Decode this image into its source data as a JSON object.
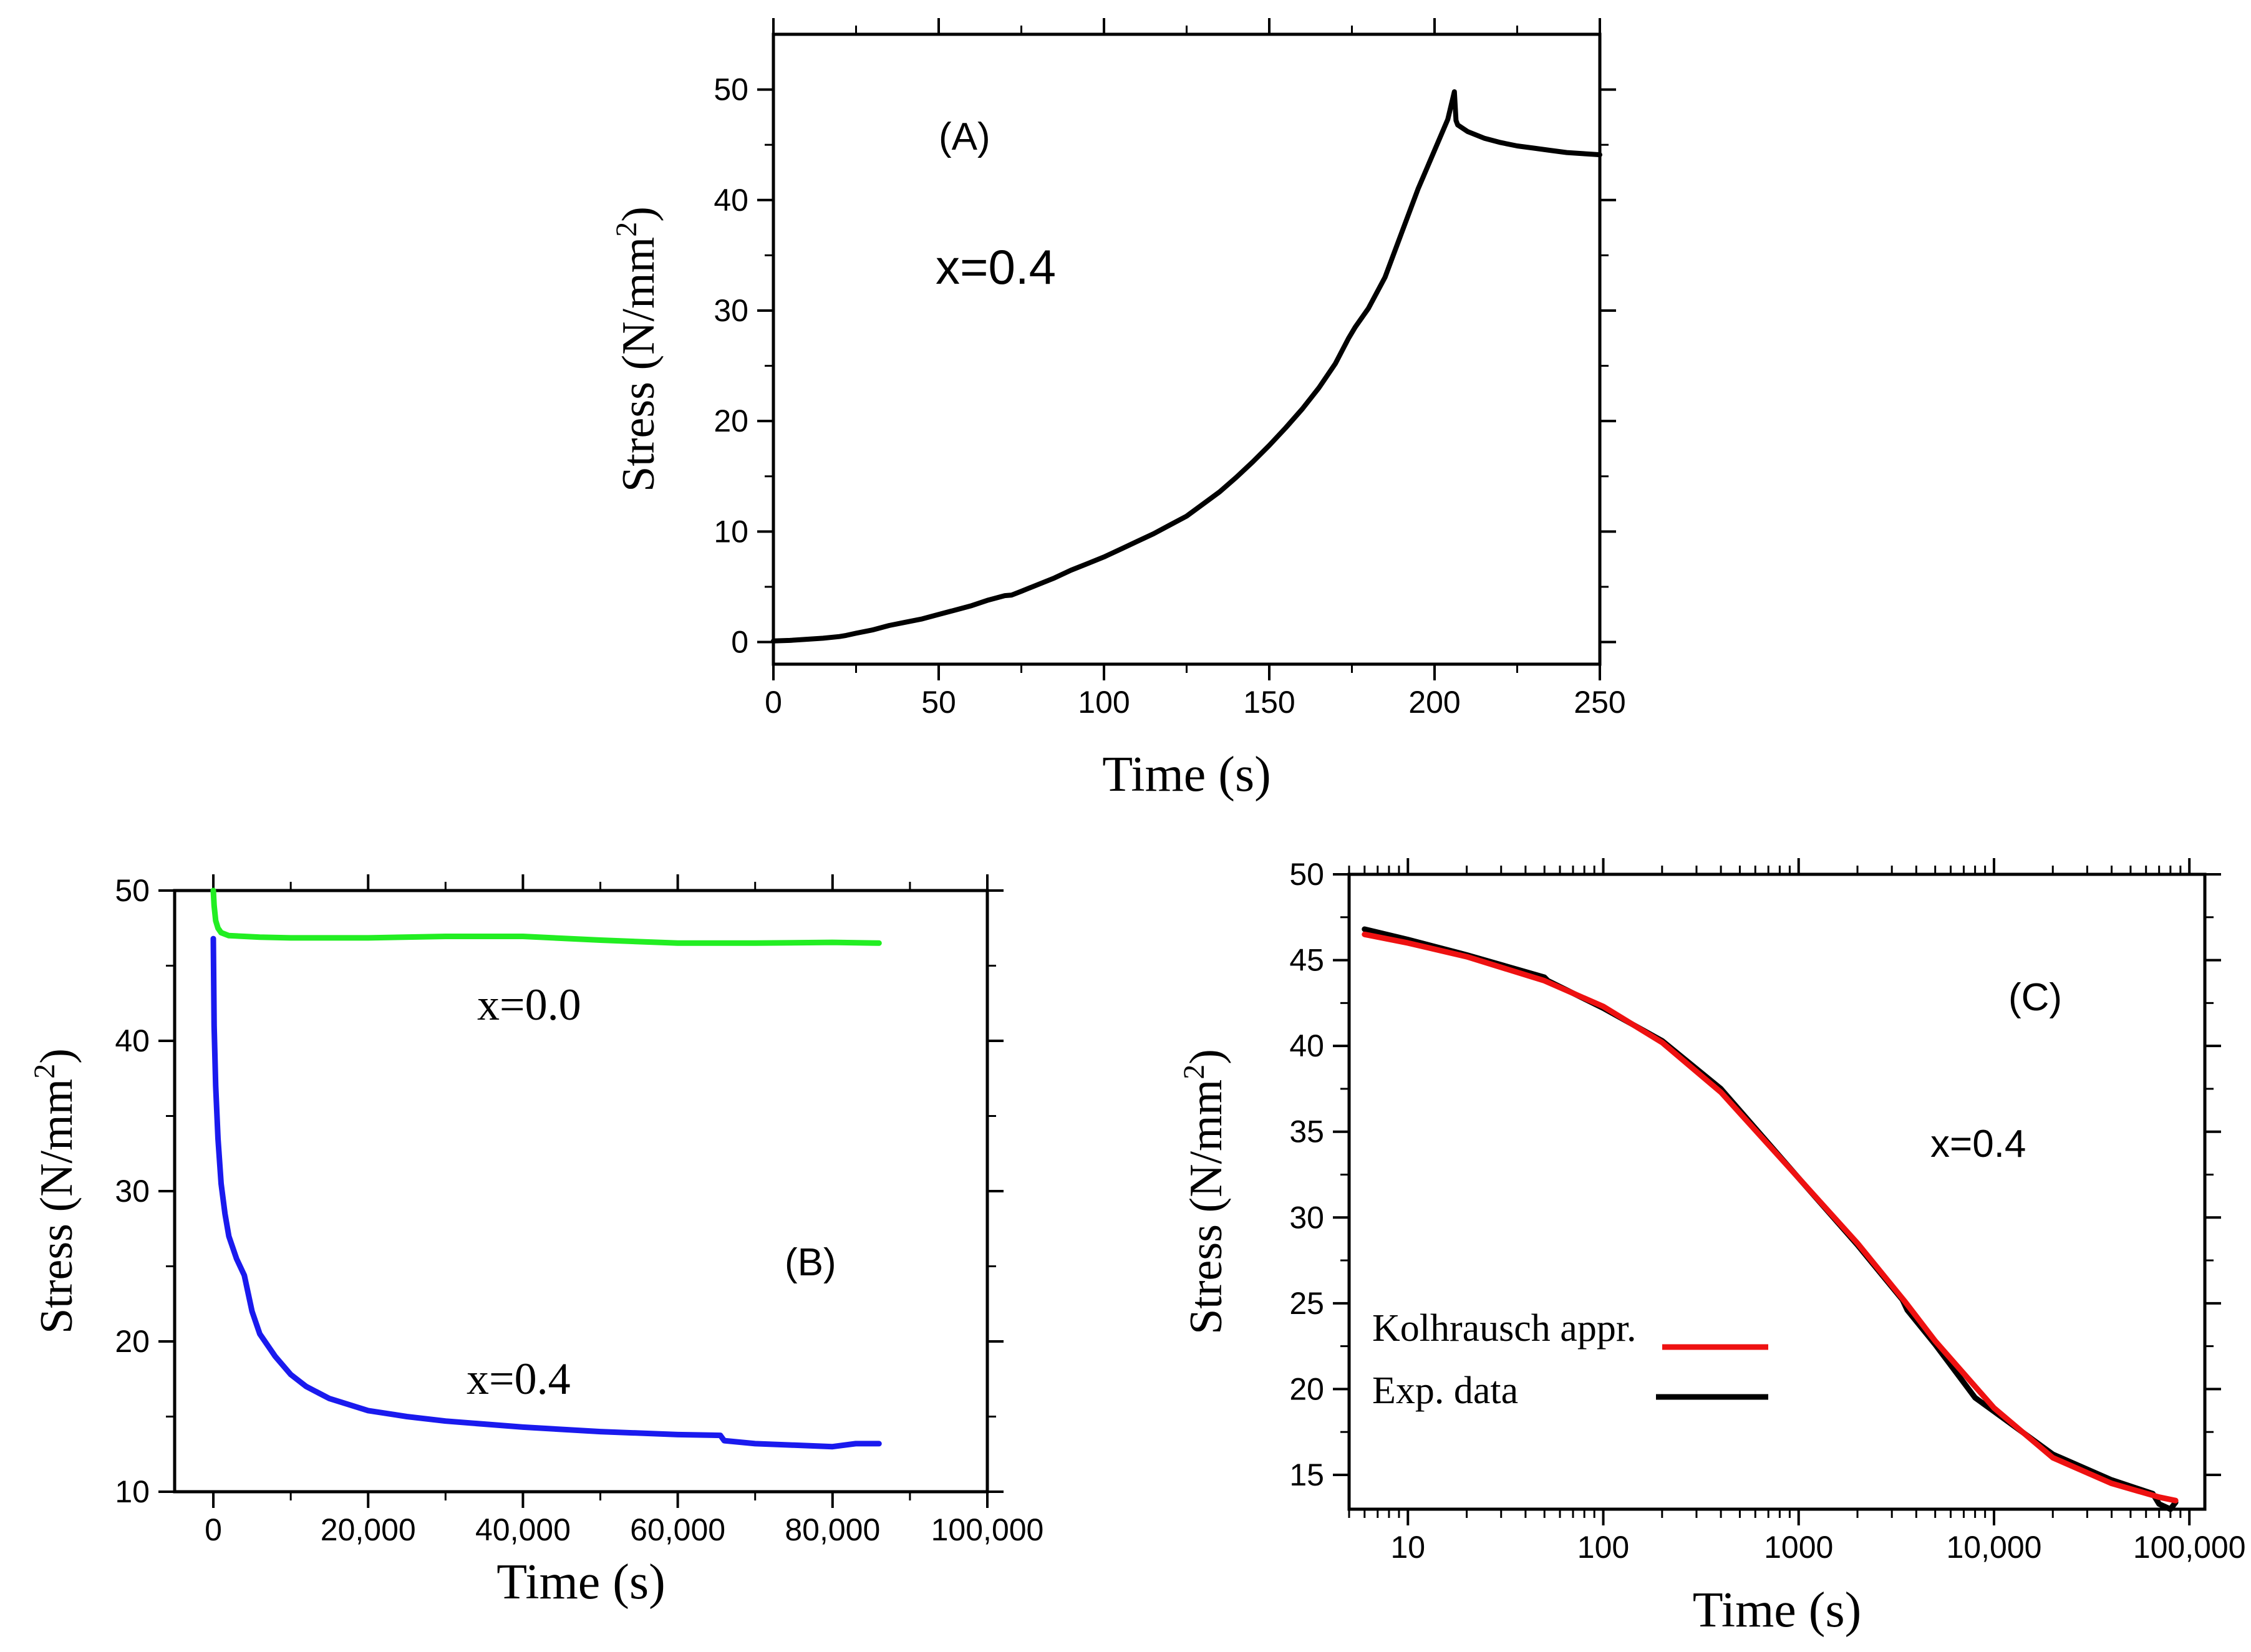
{
  "chart_data": [
    {
      "id": "A",
      "type": "line",
      "panel_label": "(A)",
      "annotation": "x=0.4",
      "xlabel": "Time (s)",
      "ylabel_main": "Stress  (N/mm",
      "ylabel_sup": "2",
      "ylabel_end": ")",
      "xlim": [
        0,
        250
      ],
      "ylim": [
        -2,
        55
      ],
      "xticks": [
        0,
        50,
        100,
        150,
        200,
        250
      ],
      "xtick_labels": [
        "0",
        "50",
        "100",
        "150",
        "200",
        "250"
      ],
      "yticks": [
        0,
        10,
        20,
        30,
        40,
        50
      ],
      "ytick_labels": [
        "0",
        "10",
        "20",
        "30",
        "40",
        "50"
      ],
      "series": [
        {
          "name": "x=0.4",
          "color": "#000000",
          "x": [
            0,
            5,
            10,
            15,
            20,
            22,
            25,
            30,
            35,
            40,
            45,
            50,
            55,
            60,
            65,
            70,
            72,
            75,
            80,
            85,
            90,
            95,
            100,
            105,
            110,
            115,
            120,
            125,
            130,
            135,
            140,
            145,
            150,
            155,
            160,
            165,
            170,
            174,
            176,
            180,
            185,
            190,
            195,
            200,
            204,
            206,
            206.5,
            207,
            210,
            215,
            220,
            225,
            230,
            235,
            240,
            245,
            250
          ],
          "y": [
            0.1,
            0.15,
            0.25,
            0.35,
            0.5,
            0.6,
            0.8,
            1.1,
            1.5,
            1.8,
            2.1,
            2.5,
            2.9,
            3.3,
            3.8,
            4.2,
            4.25,
            4.6,
            5.2,
            5.8,
            6.5,
            7.1,
            7.7,
            8.4,
            9.1,
            9.8,
            10.6,
            11.4,
            12.5,
            13.6,
            14.9,
            16.3,
            17.8,
            19.4,
            21.1,
            23.0,
            25.2,
            27.5,
            28.5,
            30.2,
            33.0,
            37.0,
            41.0,
            44.5,
            47.3,
            49.8,
            47.2,
            46.8,
            46.2,
            45.6,
            45.2,
            44.9,
            44.7,
            44.5,
            44.3,
            44.2,
            44.1
          ]
        }
      ]
    },
    {
      "id": "B",
      "type": "line",
      "panel_label": "(B)",
      "xlabel": "Time (s)",
      "ylabel_main": "Stress  (N/mm",
      "ylabel_sup": "2",
      "ylabel_end": ")",
      "xlim": [
        -5000,
        100000
      ],
      "ylim": [
        10,
        50
      ],
      "xticks": [
        0,
        20000,
        40000,
        60000,
        80000,
        100000
      ],
      "xtick_labels": [
        "0",
        "20,000",
        "40,000",
        "60,000",
        "80,000",
        "100,000"
      ],
      "yticks": [
        10,
        20,
        30,
        40,
        50
      ],
      "ytick_labels": [
        "10",
        "20",
        "30",
        "40",
        "50"
      ],
      "series": [
        {
          "name": "x=0.0",
          "color": "#22ee22",
          "x": [
            0,
            100,
            300,
            600,
            1000,
            2000,
            4000,
            6000,
            10000,
            20000,
            30000,
            40000,
            50000,
            60000,
            70000,
            80000,
            86000
          ],
          "y": [
            50,
            49.0,
            48.0,
            47.5,
            47.2,
            47.0,
            46.95,
            46.9,
            46.85,
            46.85,
            46.95,
            46.95,
            46.7,
            46.5,
            46.5,
            46.55,
            46.5
          ]
        },
        {
          "name": "x=0.4",
          "color": "#1a1aee",
          "x": [
            0,
            100,
            300,
            600,
            1000,
            1500,
            2000,
            3000,
            4000,
            5000,
            6000,
            8000,
            10000,
            12000,
            15000,
            20000,
            25000,
            30000,
            40000,
            50000,
            60000,
            65500,
            66000,
            70000,
            75000,
            80000,
            83000,
            86000
          ],
          "y": [
            46.8,
            41.0,
            37.0,
            33.5,
            30.5,
            28.5,
            27.0,
            25.5,
            24.4,
            22.0,
            20.5,
            19.0,
            17.8,
            17.0,
            16.2,
            15.4,
            15.0,
            14.7,
            14.3,
            14.0,
            13.8,
            13.75,
            13.4,
            13.2,
            13.1,
            13.0,
            13.2,
            13.2
          ]
        }
      ],
      "annotations": [
        {
          "text": "x=0.0"
        },
        {
          "text": "x=0.4"
        }
      ]
    },
    {
      "id": "C",
      "type": "line",
      "panel_label": "(C)",
      "annotation": "x=0.4",
      "xscale": "log",
      "xlabel": "Time (s)",
      "ylabel_main": "Stress  (N/mm",
      "ylabel_sup": "2",
      "ylabel_end": ")",
      "xlim": [
        5,
        120000
      ],
      "ylim": [
        13,
        50
      ],
      "xticks": [
        10,
        100,
        1000,
        10000,
        100000
      ],
      "xtick_labels": [
        "10",
        "100",
        "1000",
        "10,000",
        "100,000"
      ],
      "yticks": [
        15,
        20,
        25,
        30,
        35,
        40,
        45,
        50
      ],
      "ytick_labels": [
        "15",
        "20",
        "25",
        "30",
        "35",
        "40",
        "45",
        "50"
      ],
      "legend_position": "lower-left",
      "series": [
        {
          "name": "Kolhrausch appr.",
          "color": "#ee1111",
          "x": [
            6,
            10,
            20,
            50,
            100,
            200,
            400,
            1000,
            2000,
            3500,
            5000,
            10000,
            20000,
            40000,
            70000,
            85000
          ],
          "y": [
            46.5,
            46.0,
            45.2,
            43.8,
            42.3,
            40.2,
            37.3,
            32.3,
            28.5,
            25.1,
            22.8,
            18.9,
            16.0,
            14.5,
            13.7,
            13.5
          ]
        },
        {
          "name": "Exp. data",
          "color": "#000000",
          "x": [
            6,
            10,
            20,
            50,
            52,
            100,
            200,
            400,
            1000,
            2000,
            3400,
            3600,
            5000,
            8000,
            10000,
            20000,
            40000,
            65000,
            70000,
            80000,
            85000
          ],
          "y": [
            46.8,
            46.2,
            45.3,
            44.0,
            43.8,
            42.2,
            40.3,
            37.5,
            32.3,
            28.4,
            25.2,
            24.6,
            22.6,
            19.5,
            18.7,
            16.2,
            14.7,
            13.9,
            13.3,
            13.0,
            13.4
          ]
        }
      ]
    }
  ]
}
